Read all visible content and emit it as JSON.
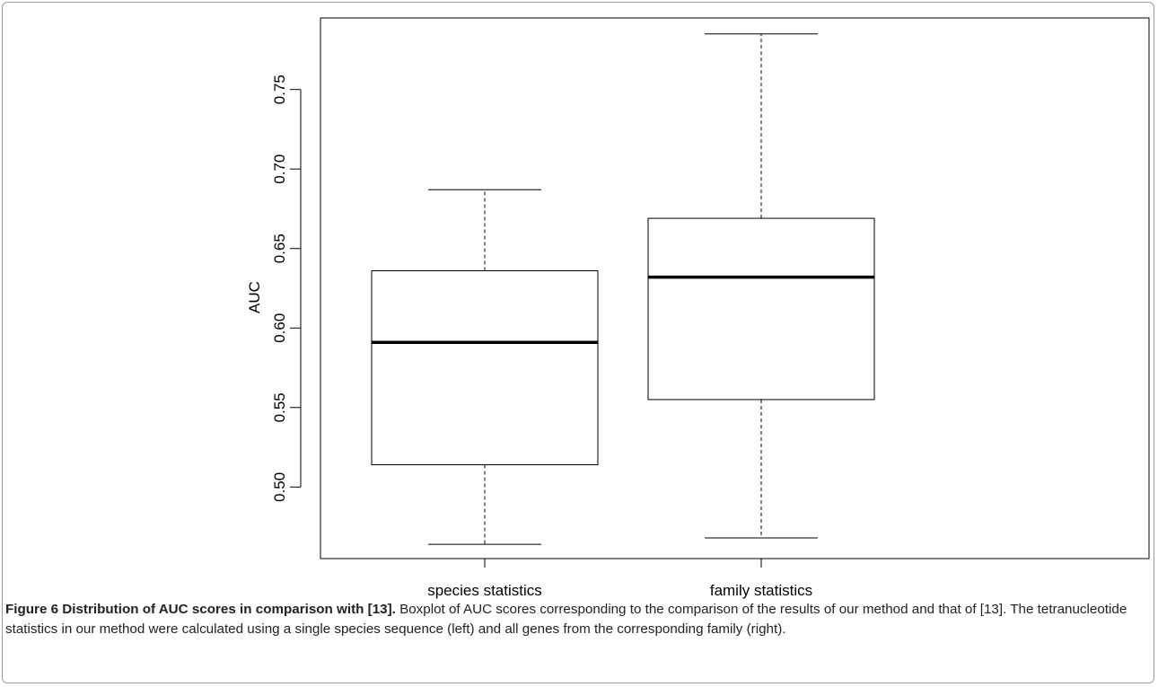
{
  "chart_data": {
    "type": "boxplot",
    "ylabel": "AUC",
    "xlabel": "",
    "ylim": [
      0.455,
      0.795
    ],
    "yticks": [
      0.5,
      0.55,
      0.6,
      0.65,
      0.7,
      0.75
    ],
    "ytick_labels": [
      "0.50",
      "0.55",
      "0.60",
      "0.65",
      "0.70",
      "0.75"
    ],
    "grid": false,
    "categories": [
      "species statistics",
      "family statistics"
    ],
    "boxes": [
      {
        "category": "species statistics",
        "min": 0.464,
        "q1": 0.514,
        "median": 0.591,
        "q3": 0.636,
        "max": 0.687
      },
      {
        "category": "family statistics",
        "min": 0.468,
        "q1": 0.555,
        "median": 0.632,
        "q3": 0.669,
        "max": 0.785
      }
    ]
  },
  "caption": {
    "lead": "Figure 6 Distribution of AUC scores in comparison with [13].",
    "body": " Boxplot of AUC scores corresponding to the comparison of the results of our method and that of [13]. The tetranucleotide statistics in our method were calculated using a single species sequence (left) and all genes from the corresponding family (right)."
  }
}
